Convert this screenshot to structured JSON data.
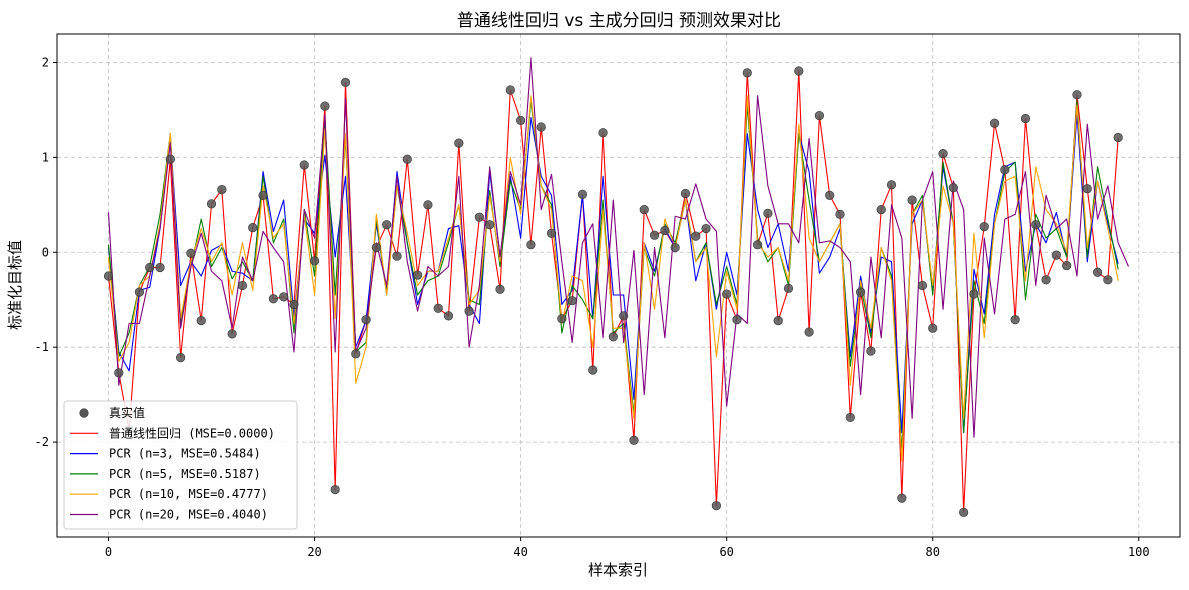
{
  "chart_data": {
    "type": "line",
    "title": "普通线性回归 vs 主成分回归 预测效果对比",
    "xlabel": "样本索引",
    "ylabel": "标准化目标值",
    "xlim": [
      -5,
      104
    ],
    "ylim": [
      -3.0,
      2.3
    ],
    "xticks": [
      0,
      20,
      40,
      60,
      80,
      100
    ],
    "yticks": [
      -2,
      -1,
      0,
      1,
      2
    ],
    "grid": true,
    "legend_position": "lower-left",
    "scatter": {
      "name": "真实值",
      "color": "#555555",
      "values": [
        -0.25,
        -1.27,
        -1.87,
        -0.42,
        -0.16,
        -0.16,
        0.98,
        -1.11,
        -0.01,
        -0.72,
        0.51,
        0.66,
        -0.86,
        -0.35,
        0.26,
        0.6,
        -0.49,
        -0.47,
        -0.55,
        0.92,
        -0.09,
        1.54,
        -2.5,
        1.79,
        -1.07,
        -0.71,
        0.05,
        0.29,
        -0.04,
        0.98,
        -0.24,
        0.5,
        -0.59,
        -0.67,
        1.15,
        -0.62,
        0.37,
        0.29,
        -0.39,
        1.71,
        1.39,
        0.08,
        1.32,
        0.2,
        -0.7,
        -0.51,
        0.61,
        -1.24,
        1.26,
        -0.89,
        -0.67,
        -1.98,
        0.45,
        0.18,
        0.23,
        0.05,
        0.62,
        0.17,
        0.25,
        -2.67,
        -0.44,
        -0.71,
        1.89,
        0.08,
        0.41,
        -0.72,
        -0.38,
        1.91,
        -0.84,
        1.44,
        0.6,
        0.4,
        -1.74,
        -0.42,
        -1.04,
        0.45,
        0.71,
        -2.59,
        0.55,
        -0.35,
        -0.8,
        1.04,
        0.68,
        -2.74,
        -0.44,
        0.27,
        1.36,
        0.87,
        -0.71,
        1.41,
        0.29,
        -0.29,
        -0.03,
        -0.14,
        1.66,
        0.67,
        -0.21,
        -0.29,
        1.21
      ]
    },
    "series": [
      {
        "name": "普通线性回归 (MSE=0.0000)",
        "color": "#ff0000",
        "values": [
          -0.25,
          -1.27,
          -1.87,
          -0.42,
          -0.16,
          -0.16,
          0.98,
          -1.11,
          -0.01,
          -0.72,
          0.51,
          0.66,
          -0.86,
          -0.35,
          0.26,
          0.6,
          -0.49,
          -0.47,
          -0.55,
          0.92,
          -0.09,
          1.54,
          -2.5,
          1.79,
          -1.07,
          -0.71,
          0.05,
          0.29,
          -0.04,
          0.98,
          -0.24,
          0.5,
          -0.59,
          -0.67,
          1.15,
          -0.62,
          0.37,
          0.29,
          -0.39,
          1.71,
          1.39,
          0.08,
          1.32,
          0.2,
          -0.7,
          -0.51,
          0.61,
          -1.24,
          1.26,
          -0.89,
          -0.67,
          -1.98,
          0.45,
          0.18,
          0.23,
          0.05,
          0.62,
          0.17,
          0.25,
          -2.67,
          -0.44,
          -0.71,
          1.89,
          0.08,
          0.41,
          -0.72,
          -0.38,
          1.91,
          -0.84,
          1.44,
          0.6,
          0.4,
          -1.74,
          -0.42,
          -1.04,
          0.45,
          0.71,
          -2.59,
          0.55,
          -0.35,
          -0.8,
          1.04,
          0.68,
          -2.74,
          -0.44,
          0.27,
          1.36,
          0.87,
          -0.71,
          1.41,
          0.29,
          -0.29,
          -0.03,
          -0.14,
          1.66,
          0.67,
          -0.21,
          -0.29,
          1.21
        ]
      },
      {
        "name": "PCR (n=3, MSE=0.5484)",
        "color": "#0000ff",
        "values": [
          0.05,
          -1.05,
          -1.25,
          -0.4,
          -0.37,
          0.25,
          1.2,
          -0.35,
          -0.1,
          -0.25,
          0.02,
          0.08,
          -0.2,
          -0.22,
          -0.3,
          0.85,
          0.22,
          0.55,
          -0.68,
          0.35,
          0.2,
          1.02,
          -0.05,
          0.8,
          -1.0,
          -0.72,
          0.3,
          -0.4,
          0.85,
          0.1,
          -0.55,
          -0.2,
          -0.2,
          0.25,
          0.28,
          -0.55,
          -0.75,
          0.85,
          -0.05,
          0.8,
          0.15,
          1.42,
          0.8,
          0.6,
          -0.55,
          -0.4,
          0.6,
          -0.7,
          0.8,
          -0.45,
          -0.45,
          -1.55,
          0.1,
          -0.2,
          0.25,
          0.05,
          0.55,
          -0.3,
          0.1,
          -0.6,
          0.0,
          -0.45,
          1.25,
          0.45,
          0.05,
          0.3,
          -0.2,
          1.25,
          0.85,
          -0.22,
          -0.05,
          0.25,
          -1.1,
          -0.25,
          -0.85,
          -0.05,
          -0.1,
          -1.9,
          0.3,
          0.55,
          -0.4,
          0.9,
          0.3,
          -1.9,
          -0.18,
          -0.65,
          0.4,
          0.9,
          0.95,
          -0.2,
          0.3,
          0.1,
          0.42,
          -0.05,
          1.45,
          -0.1,
          0.75,
          0.3,
          -0.12
        ]
      },
      {
        "name": "PCR (n=5, MSE=0.5187)",
        "color": "#008000",
        "values": [
          0.08,
          -1.1,
          -0.85,
          -0.35,
          -0.15,
          0.4,
          1.25,
          -0.75,
          -0.15,
          0.35,
          -0.15,
          0.05,
          -0.28,
          -0.1,
          -0.3,
          0.8,
          0.1,
          0.35,
          -0.85,
          0.45,
          -0.25,
          1.4,
          -0.45,
          1.2,
          -1.05,
          -0.95,
          0.35,
          -0.45,
          0.7,
          0.1,
          -0.45,
          -0.3,
          -0.25,
          0.1,
          0.5,
          -0.5,
          -0.55,
          0.65,
          -0.15,
          0.75,
          0.45,
          1.6,
          0.7,
          0.5,
          -0.85,
          -0.35,
          -0.5,
          -0.7,
          0.55,
          -0.85,
          -0.75,
          -1.7,
          0.05,
          -0.25,
          0.3,
          0.1,
          0.55,
          -0.1,
          0.1,
          -0.55,
          -0.15,
          -0.55,
          1.55,
          0.15,
          -0.1,
          0.05,
          -0.35,
          1.25,
          0.55,
          -0.1,
          0.1,
          0.3,
          -1.2,
          -0.35,
          -0.9,
          0.05,
          -0.25,
          -2.1,
          0.4,
          0.6,
          -0.45,
          0.95,
          0.3,
          -1.9,
          -0.3,
          -0.75,
          0.3,
          0.85,
          0.95,
          -0.5,
          0.4,
          0.15,
          0.25,
          -0.05,
          1.6,
          -0.05,
          0.9,
          0.35,
          -0.18
        ]
      },
      {
        "name": "PCR (n=10, MSE=0.4777)",
        "color": "#ffa500",
        "values": [
          -0.05,
          -1.15,
          -0.95,
          -0.35,
          -0.25,
          0.3,
          1.25,
          -0.7,
          -0.1,
          0.25,
          -0.1,
          0.1,
          -0.45,
          0.1,
          -0.4,
          0.7,
          0.15,
          0.3,
          -0.75,
          0.4,
          -0.45,
          1.3,
          -0.7,
          1.25,
          -1.38,
          -1.0,
          0.4,
          -0.45,
          0.7,
          0.2,
          -0.35,
          -0.2,
          -0.2,
          0.15,
          0.5,
          -0.55,
          -0.4,
          0.6,
          -0.1,
          1.0,
          0.4,
          1.65,
          0.7,
          0.45,
          -0.75,
          -0.25,
          -0.3,
          -1.0,
          0.45,
          -0.8,
          -0.8,
          -1.75,
          0.1,
          -0.6,
          0.35,
          0.05,
          0.55,
          -0.1,
          0.05,
          -1.1,
          -0.2,
          -0.6,
          1.65,
          0.1,
          -0.05,
          0.05,
          -0.3,
          1.35,
          0.15,
          -0.1,
          0.1,
          0.3,
          -1.4,
          -0.3,
          -0.8,
          0.05,
          -0.3,
          -2.2,
          0.4,
          0.55,
          -0.35,
          0.7,
          0.3,
          -1.75,
          0.2,
          -0.9,
          0.3,
          0.75,
          0.8,
          -0.3,
          0.9,
          0.45,
          0.3,
          0.0,
          1.55,
          0.05,
          0.75,
          0.25,
          -0.3
        ]
      },
      {
        "name": "PCR (n=20, MSE=0.4040)",
        "color": "#800080",
        "values": [
          0.42,
          -1.4,
          -0.75,
          -0.75,
          -0.25,
          0.25,
          1.15,
          -0.8,
          -0.15,
          0.2,
          -0.2,
          -0.3,
          -0.8,
          -0.05,
          -0.3,
          0.22,
          0.05,
          -0.1,
          -1.05,
          0.45,
          0.15,
          1.45,
          -1.05,
          1.62,
          -1.05,
          -0.8,
          0.1,
          -0.35,
          0.8,
          -0.1,
          -0.62,
          -0.15,
          -0.25,
          -0.15,
          0.8,
          -1.0,
          -0.35,
          0.9,
          -0.05,
          0.85,
          0.5,
          2.05,
          0.45,
          0.82,
          -0.1,
          -0.95,
          0.1,
          0.3,
          -0.9,
          0.55,
          -0.95,
          0.02,
          -1.5,
          0.05,
          -0.9,
          0.38,
          0.35,
          0.72,
          0.35,
          0.22,
          -1.62,
          -0.65,
          -0.75,
          1.65,
          0.7,
          0.3,
          0.3,
          0.1,
          1.2,
          0.1,
          0.12,
          0.05,
          -0.1,
          -1.5,
          -0.05,
          -0.9,
          0.5,
          0.15,
          -1.75,
          0.55,
          0.85,
          -0.6,
          0.75,
          0.45,
          -1.95,
          0.15,
          -0.65,
          0.35,
          0.4,
          0.85,
          -0.35,
          0.6,
          0.25,
          0.35,
          -0.25,
          1.35,
          0.35,
          0.7,
          0.1,
          -0.15
        ]
      }
    ]
  }
}
